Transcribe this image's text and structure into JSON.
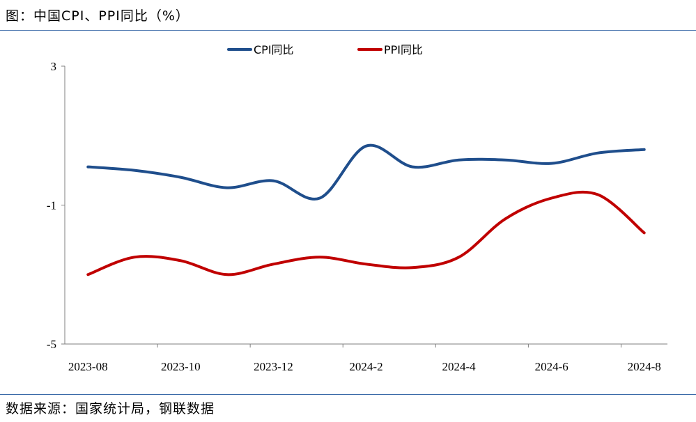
{
  "header": {
    "title": "图：中国CPI、PPI同比（%）"
  },
  "footer": {
    "source": "数据来源：国家统计局，钢联数据"
  },
  "chart_data": {
    "type": "line",
    "title": "中国CPI、PPI同比（%）",
    "xlabel": "",
    "ylabel": "",
    "ylim": [
      -5,
      3
    ],
    "yticks": [
      "3",
      "-1",
      "-5"
    ],
    "ytick_values": [
      3,
      -1,
      -5
    ],
    "categories": [
      "2023-08",
      "2023-09",
      "2023-10",
      "2023-11",
      "2023-12",
      "2024-1",
      "2024-2",
      "2024-3",
      "2024-4",
      "2024-5",
      "2024-6",
      "2024-7",
      "2024-8"
    ],
    "xtick_labels": [
      "2023-08",
      "2023-10",
      "2023-12",
      "2024-2",
      "2024-4",
      "2024-6",
      "2024-8"
    ],
    "grid": false,
    "legend_position": "top-center",
    "series": [
      {
        "name": "CPI同比",
        "color": "#1f4e8c",
        "values": [
          0.1,
          0.0,
          -0.2,
          -0.5,
          -0.3,
          -0.8,
          0.7,
          0.1,
          0.3,
          0.3,
          0.2,
          0.5,
          0.6
        ]
      },
      {
        "name": "PPI同比",
        "color": "#c00000",
        "values": [
          -3.0,
          -2.5,
          -2.6,
          -3.0,
          -2.7,
          -2.5,
          -2.7,
          -2.8,
          -2.5,
          -1.4,
          -0.8,
          -0.7,
          -1.8
        ]
      }
    ]
  }
}
